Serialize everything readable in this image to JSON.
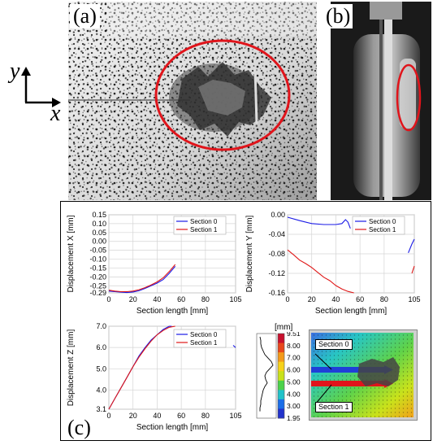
{
  "panels": {
    "a": {
      "label": "(a)"
    },
    "b": {
      "label": "(b)"
    },
    "c": {
      "label": "(c)"
    }
  },
  "axes_indicator": {
    "y": "y",
    "x": "x"
  },
  "charts": {
    "x": {
      "ylabel": "Displacement X [mm]",
      "xlabel": "Section length [mm]",
      "yticks": [
        "0.15",
        "0.10",
        "0.05",
        "0.00",
        "-0.05",
        "-0.10",
        "-0.15",
        "-0.20",
        "-0.25",
        "-0.29"
      ],
      "xticks": [
        "0",
        "20",
        "40",
        "60",
        "80",
        "105"
      ]
    },
    "y": {
      "ylabel": "Displacement Y [mm]",
      "xlabel": "Section length [mm]",
      "yticks": [
        "0.00",
        "-0.04",
        "-0.08",
        "-0.12",
        "-0.16"
      ],
      "xticks": [
        "0",
        "20",
        "40",
        "60",
        "80",
        "105"
      ]
    },
    "z": {
      "ylabel": "Displacement Z [mm]",
      "xlabel": "Section length [mm]",
      "yticks": [
        "7.0",
        "6.0",
        "5.0",
        "4.0",
        "3.1"
      ],
      "xticks": [
        "0",
        "20",
        "40",
        "60",
        "80",
        "105"
      ]
    }
  },
  "legend": {
    "s0": "Section 0",
    "s1": "Section 1"
  },
  "colorbar": {
    "unit": "[mm]",
    "ticks": [
      "9.51",
      "8.00",
      "7.00",
      "6.00",
      "5.00",
      "4.00",
      "3.00",
      "1.95"
    ],
    "colors": [
      "#c8102e",
      "#e8471c",
      "#f39a1a",
      "#f7d21a",
      "#c9e21b",
      "#4bd24a",
      "#20c2c9",
      "#1a6ee8",
      "#2233cc"
    ]
  },
  "map_labels": {
    "s0": "Section 0",
    "s1": "Section 1"
  },
  "chart_data": [
    {
      "type": "line",
      "xlabel": "Section length [mm]",
      "ylabel": "Displacement X [mm]",
      "xlim": [
        0,
        105
      ],
      "ylim": [
        -0.29,
        0.15
      ],
      "series": [
        {
          "name": "Section 0",
          "x": [
            0,
            5,
            10,
            15,
            20,
            25,
            30,
            35,
            40,
            45,
            50,
            55
          ],
          "y": [
            -0.28,
            -0.283,
            -0.286,
            -0.288,
            -0.285,
            -0.278,
            -0.265,
            -0.25,
            -0.235,
            -0.215,
            -0.18,
            -0.14
          ]
        },
        {
          "name": "Section 1",
          "x": [
            0,
            5,
            10,
            15,
            20,
            25,
            30,
            35,
            40,
            45,
            50,
            55
          ],
          "y": [
            -0.275,
            -0.28,
            -0.283,
            -0.283,
            -0.28,
            -0.272,
            -0.26,
            -0.245,
            -0.228,
            -0.205,
            -0.17,
            -0.13
          ]
        }
      ]
    },
    {
      "type": "line",
      "xlabel": "Section length [mm]",
      "ylabel": "Displacement Y [mm]",
      "xlim": [
        0,
        105
      ],
      "ylim": [
        -0.16,
        0.0
      ],
      "series": [
        {
          "name": "Section 0",
          "x": [
            0,
            10,
            20,
            30,
            40,
            45,
            48,
            50,
            52,
            100,
            103,
            105
          ],
          "y": [
            -0.005,
            -0.012,
            -0.018,
            -0.02,
            -0.02,
            -0.018,
            -0.01,
            -0.015,
            -0.028,
            -0.078,
            -0.06,
            -0.05
          ]
        },
        {
          "name": "Section 1",
          "x": [
            0,
            5,
            10,
            15,
            20,
            25,
            30,
            35,
            40,
            45,
            50,
            55,
            103,
            105
          ],
          "y": [
            -0.072,
            -0.082,
            -0.093,
            -0.1,
            -0.108,
            -0.118,
            -0.128,
            -0.135,
            -0.145,
            -0.152,
            -0.157,
            -0.16,
            -0.12,
            -0.105
          ]
        }
      ]
    },
    {
      "type": "line",
      "xlabel": "Section length [mm]",
      "ylabel": "Displacement Z [mm]",
      "xlim": [
        0,
        105
      ],
      "ylim": [
        3.1,
        7.0
      ],
      "series": [
        {
          "name": "Section 0",
          "x": [
            0,
            5,
            10,
            15,
            20,
            25,
            30,
            35,
            40,
            45,
            50,
            52,
            103,
            105
          ],
          "y": [
            3.1,
            3.6,
            4.1,
            4.6,
            5.1,
            5.6,
            6.0,
            6.35,
            6.6,
            6.85,
            7.0,
            7.05,
            6.1,
            6.0
          ]
        },
        {
          "name": "Section 1",
          "x": [
            0,
            5,
            10,
            15,
            20,
            25,
            30,
            35,
            40,
            45,
            50,
            55
          ],
          "y": [
            3.1,
            3.6,
            4.1,
            4.6,
            5.1,
            5.55,
            5.95,
            6.3,
            6.6,
            6.8,
            6.95,
            7.0
          ]
        }
      ]
    }
  ]
}
